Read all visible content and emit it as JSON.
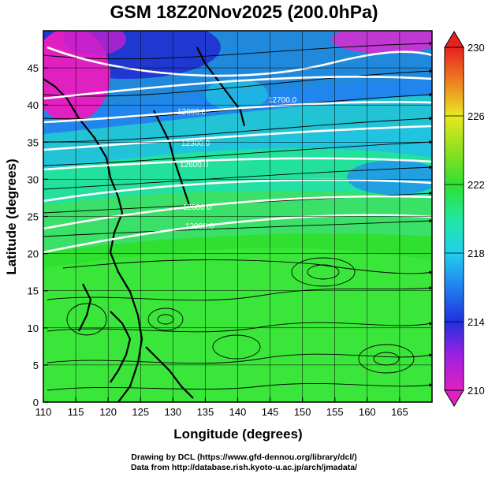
{
  "title": "GSM 18Z20Nov2025 (200.0hPa)",
  "map": {
    "xlabel": "Longitude (degrees)",
    "ylabel": "Latitude (degrees)",
    "xlim": [
      110,
      170
    ],
    "ylim": [
      0,
      50
    ],
    "xticks": [
      110,
      115,
      120,
      125,
      130,
      135,
      140,
      145,
      150,
      155,
      160,
      165
    ],
    "yticks": [
      0,
      5,
      10,
      15,
      20,
      25,
      30,
      35,
      40,
      45
    ],
    "grid": true,
    "field": "temperature shading with wind streamlines and white height contours"
  },
  "colorbar": {
    "min": 210,
    "max": 230,
    "ticks": [
      210,
      214,
      218,
      222,
      226,
      230
    ],
    "position": "right"
  },
  "contours": {
    "color": "#ffffff",
    "labels": [
      "12000.0",
      "12300.0",
      "12600.0",
      "12900.0",
      "12800.0",
      "12700.0"
    ]
  },
  "colors": {
    "magenta": "#e020c0",
    "blue": "#2040e0",
    "cyan": "#20e0e0",
    "green": "#30e030",
    "yellow": "#e8e820",
    "red": "#e82020"
  },
  "credit": {
    "line1": "Drawing by DCL (https://www.gfd-dennou.org/library/dcl/)",
    "line2": "Data from http://database.rish.kyoto-u.ac.jp/arch/jmadata/"
  }
}
